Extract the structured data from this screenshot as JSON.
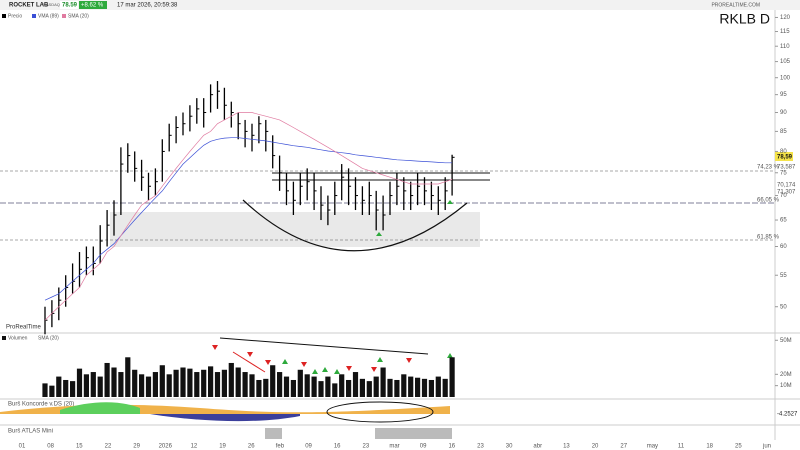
{
  "header": {
    "name": "ROCKET LAB",
    "market": "NASDAQ",
    "last": "78.59",
    "change": "+8.62 %",
    "time": "17 mar 2026, 20:59:38",
    "brand": "PROREALTIME.COM",
    "symbol": "RKLB  D",
    "watermark": "ProRealTime"
  },
  "annotations": [
    "78,59",
    "74,23 %",
    "73,587",
    "70,174",
    "71,307",
    "66,05 %",
    "61,85 %"
  ],
  "indicators": {
    "koncorde": "Burš Koncorde v.DS (20)",
    "koncorde_value": "-4.2527",
    "atlas": "Burš ATLAS Mini"
  },
  "x_axis_labels": [
    "01",
    "08",
    "15",
    "22",
    "29",
    "2026",
    "12",
    "19",
    "26",
    "feb",
    "09",
    "16",
    "23",
    "mar",
    "09",
    "16",
    "23",
    "30",
    "abr",
    "13",
    "20",
    "27",
    "may",
    "11",
    "18",
    "25",
    "jun"
  ],
  "chart_data": [
    {
      "type": "ohlc",
      "log_scale": true,
      "ylim": [
        46.6,
        122
      ],
      "yticks": [
        50,
        55,
        60,
        65,
        70,
        75,
        80,
        85,
        90,
        95,
        100,
        105,
        110,
        115,
        120
      ],
      "series": [
        {
          "name": "Precio",
          "color": "#000000",
          "high": [
            50,
            51,
            53,
            55,
            57,
            59,
            60,
            60,
            64,
            67,
            69,
            81,
            82,
            80,
            78,
            75,
            76,
            83,
            87,
            89,
            90,
            92,
            94,
            94,
            98,
            99,
            97,
            93,
            90,
            88,
            87,
            89,
            88,
            84,
            79,
            75,
            73,
            75,
            76,
            75,
            72,
            70,
            73,
            77,
            76,
            74,
            72,
            73,
            71,
            70,
            73,
            75,
            74,
            73,
            75,
            74,
            73,
            72,
            74,
            79.2
          ],
          "low": [
            46,
            47,
            48,
            50,
            52,
            53,
            55,
            55,
            57,
            60,
            62,
            66,
            75,
            73,
            71,
            69,
            70,
            73,
            80,
            82,
            84,
            85,
            87,
            86,
            90,
            91,
            88,
            86,
            83,
            81,
            80,
            82,
            80,
            76,
            71,
            68,
            66,
            68,
            69,
            67,
            65,
            64,
            66,
            69,
            68,
            67,
            66,
            66,
            63,
            63,
            66,
            68,
            67,
            67,
            68,
            68,
            67,
            66,
            67,
            70
          ],
          "close": [
            48,
            49,
            51,
            53,
            54,
            56,
            58,
            57,
            61,
            64,
            66,
            77,
            79,
            76,
            74,
            72,
            73,
            80,
            84,
            86,
            87,
            89,
            91,
            90,
            95,
            96,
            92,
            90,
            87,
            85,
            84,
            87,
            85,
            79,
            75,
            71,
            69,
            72,
            73,
            71,
            68,
            67,
            70,
            74,
            72,
            70,
            69,
            70,
            67,
            66,
            70,
            72,
            71,
            70,
            72,
            71,
            70,
            69,
            71,
            78.59
          ]
        },
        {
          "name": "VMA (89)",
          "color": "#3a4fd6",
          "values": [
            51,
            51.5,
            52,
            53,
            54,
            55,
            56,
            57,
            58.5,
            59.5,
            60.5,
            62,
            63.5,
            65,
            66.5,
            68,
            69.5,
            71,
            73,
            75,
            77,
            78.5,
            80,
            81.5,
            82.5,
            83,
            83.3,
            83.4,
            83.4,
            83.2,
            83,
            82.8,
            82.6,
            82.3,
            82,
            81.7,
            81.4,
            81.2,
            81,
            80.7,
            80.4,
            80.1,
            79.9,
            79.7,
            79.5,
            79.2,
            79,
            78.8,
            78.6,
            78.4,
            78.2,
            78,
            77.9,
            77.8,
            77.7,
            77.6,
            77.5,
            77.4,
            77.3,
            77.3
          ]
        },
        {
          "name": "SMA (20)",
          "color": "#e07aa0",
          "values": [
            48,
            49,
            50,
            51,
            52,
            53,
            55,
            56,
            57,
            59,
            60,
            62,
            64,
            66,
            68,
            69,
            70,
            72,
            74,
            76,
            78,
            80,
            82,
            84,
            85,
            87,
            88,
            89,
            90,
            90,
            90,
            89.5,
            89,
            88.5,
            88,
            87,
            86,
            85,
            84,
            83,
            82,
            81,
            80,
            79,
            78,
            77,
            76,
            75.5,
            75,
            74.5,
            74,
            73.5,
            73,
            72.5,
            72.5,
            72.5,
            72.5,
            72.5,
            73,
            73.5
          ]
        }
      ]
    },
    {
      "type": "bar",
      "ylim": [
        0,
        52
      ],
      "sma_label": "SMA (20)",
      "yticks": [
        {
          "value": 10,
          "label": "10M"
        },
        {
          "value": 20,
          "label": "20M"
        },
        {
          "value": 50,
          "label": "50M"
        }
      ],
      "series": [
        {
          "name": "Volumen",
          "color": "#111111",
          "values": [
            12,
            10,
            18,
            15,
            14,
            25,
            20,
            22,
            18,
            30,
            26,
            22,
            35,
            24,
            20,
            18,
            22,
            28,
            20,
            24,
            26,
            25,
            22,
            24,
            27,
            22,
            24,
            30,
            26,
            22,
            20,
            15,
            16,
            28,
            22,
            18,
            15,
            24,
            20,
            18,
            14,
            18,
            12,
            20,
            15,
            22,
            16,
            14,
            18,
            26,
            16,
            15,
            20,
            18,
            17,
            16,
            15,
            18,
            16,
            35
          ]
        }
      ]
    }
  ]
}
